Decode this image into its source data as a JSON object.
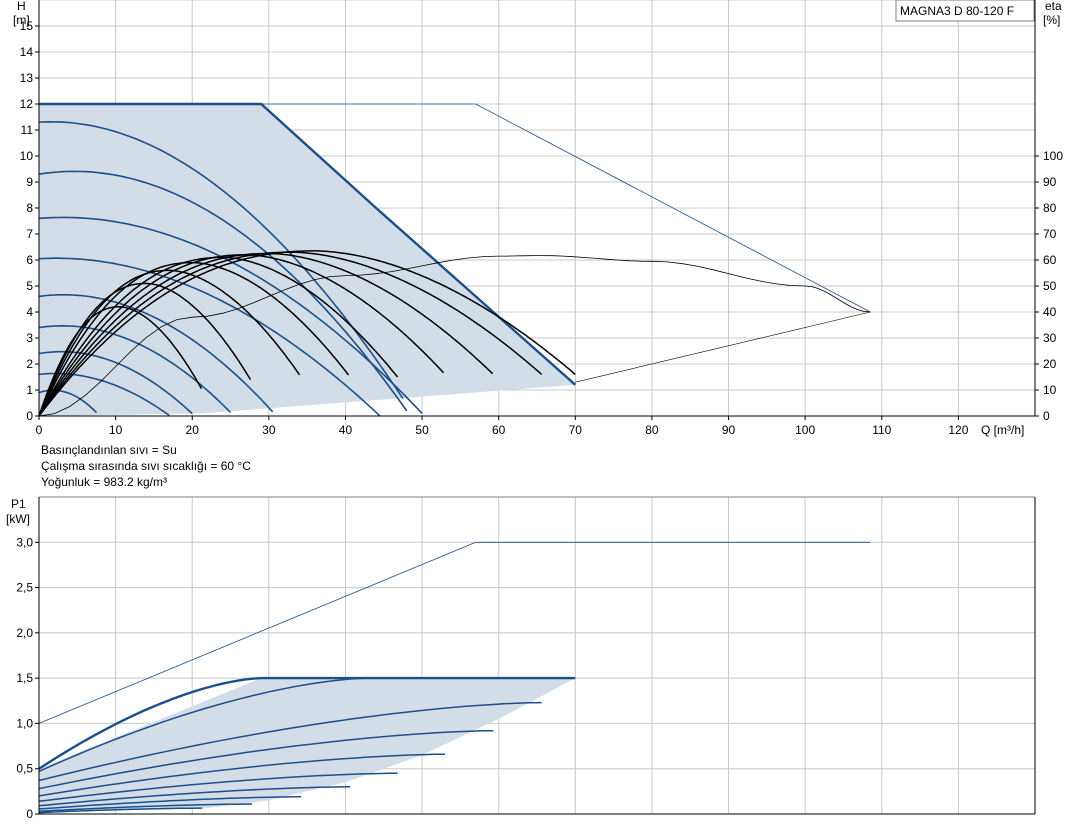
{
  "colors": {
    "envelope_fill": "#d3dde8",
    "blue": "#1a4f8a",
    "black": "#000000",
    "grid": "#c8c8c8",
    "frame": "#808080"
  },
  "conditions": [
    "Basınçlandınlan sıvı = Su",
    "Çalışma sırasında sıvı sıcaklığı = 60 °C",
    "Yoğunluk = 983.2 kg/m³"
  ],
  "chart_data": [
    {
      "type": "line",
      "title": "MAGNA3 D 80-120 F",
      "xlabel": "Q [m³/h]",
      "ylabel_line1": "H",
      "ylabel_line2": "[m]",
      "y2label_line1": "eta",
      "y2label_line2": "[%]",
      "xlim": [
        0,
        130
      ],
      "ylim": [
        0,
        16
      ],
      "y2lim": [
        0,
        160
      ],
      "x_ticks": [
        0,
        10,
        20,
        30,
        40,
        50,
        60,
        70,
        80,
        90,
        100,
        110,
        120
      ],
      "y_ticks": [
        0,
        1,
        2,
        3,
        4,
        5,
        6,
        7,
        8,
        9,
        10,
        11,
        12,
        13,
        14,
        15
      ],
      "y2_ticks": [
        0,
        10,
        20,
        30,
        40,
        50,
        60,
        70,
        80,
        90,
        100
      ],
      "grid": true,
      "envelope_boundary": [
        [
          0,
          12
        ],
        [
          29,
          12
        ],
        [
          44,
          8
        ],
        [
          70,
          1.2
        ],
        [
          21.3,
          0.1
        ],
        [
          0,
          0
        ]
      ],
      "max_head_line": [
        [
          29,
          12
        ],
        [
          57,
          12
        ],
        [
          108.5,
          4
        ]
      ],
      "speed_curves_head": [
        {
          "shutoff": 11.3,
          "qpeak": 11.3,
          "hpeak": 11.4
        },
        {
          "shutoff": 9.3,
          "qpeak": 8.5,
          "hpeak": 9.5
        },
        {
          "shutoff": 7.6,
          "qpeak": 8.5,
          "hpeak": 7.7
        },
        {
          "shutoff": 6.05,
          "qpeak": 6,
          "hpeak": 6.1
        },
        {
          "shutoff": 4.6,
          "qpeak": 5,
          "hpeak": 4.7
        },
        {
          "shutoff": 3.4,
          "qpeak": 4.5,
          "hpeak": 3.5
        },
        {
          "shutoff": 2.4,
          "qpeak": 4,
          "hpeak": 2.5
        },
        {
          "shutoff": 1.6,
          "qpeak": 3,
          "hpeak": 1.65
        },
        {
          "shutoff": 0.9,
          "qpeak": 2,
          "hpeak": 1.0
        }
      ],
      "efficiency_curves": [
        {
          "qend": 21.3,
          "qpeak": 10.5,
          "etapeak": 42,
          "etaend": 10
        },
        {
          "qend": 27.8,
          "qpeak": 14,
          "etapeak": 51,
          "etaend": 13
        },
        {
          "qend": 34.2,
          "qpeak": 17,
          "etapeak": 56,
          "etaend": 15
        },
        {
          "qend": 40.6,
          "qpeak": 20,
          "etapeak": 59,
          "etaend": 15
        },
        {
          "qend": 46.8,
          "qpeak": 24,
          "etapeak": 61,
          "etaend": 15
        },
        {
          "qend": 53,
          "qpeak": 27,
          "etapeak": 62,
          "etaend": 16
        },
        {
          "qend": 59.3,
          "qpeak": 30,
          "etapeak": 62.5,
          "etaend": 16
        },
        {
          "qend": 65.6,
          "qpeak": 33,
          "etapeak": 63,
          "etaend": 16
        },
        {
          "qend": 70,
          "qpeak": 36,
          "etapeak": 63.5,
          "etaend": 16
        }
      ],
      "efficiency_max_speed": {
        "points": [
          [
            0,
            0
          ],
          [
            20,
            38
          ],
          [
            40,
            54
          ],
          [
            60,
            61.5
          ],
          [
            65.6,
            61.7
          ],
          [
            80,
            59.5
          ],
          [
            100,
            50
          ],
          [
            108.5,
            40
          ]
        ]
      },
      "max_speed_limit_eta": [
        [
          70,
          13
        ],
        [
          108.5,
          40
        ]
      ]
    },
    {
      "type": "line",
      "ylabel_line1": "P1",
      "ylabel_line2": "[kW]",
      "xlim": [
        0,
        130
      ],
      "ylim": [
        0,
        3.5
      ],
      "y_ticks": [
        "0",
        "0,5",
        "1,0",
        "1,5",
        "2,0",
        "2,5",
        "3,0"
      ],
      "y_tick_values": [
        0,
        0.5,
        1.0,
        1.5,
        2.0,
        2.5,
        3.0
      ],
      "grid": true,
      "envelope_boundary": [
        [
          0,
          0.5
        ],
        [
          29,
          1.5
        ],
        [
          70,
          1.5
        ],
        [
          60,
          1.05
        ],
        [
          50,
          0.65
        ],
        [
          40,
          0.35
        ],
        [
          30,
          0.15
        ],
        [
          21.3,
          0.06
        ],
        [
          0,
          0.02
        ]
      ],
      "max_power_line": [
        [
          0,
          1.0
        ],
        [
          57,
          3.0
        ],
        [
          108.5,
          3.0
        ]
      ],
      "speed_curves_power": [
        {
          "p0": 0.5,
          "qend": 29,
          "pend": 1.5,
          "qbreak": 29
        },
        {
          "p0": 0.47,
          "qend": 43,
          "pend": 1.5
        },
        {
          "p0": 0.37,
          "qend": 65.6,
          "pend": 1.23
        },
        {
          "p0": 0.28,
          "qend": 59.3,
          "pend": 0.92
        },
        {
          "p0": 0.2,
          "qend": 53,
          "pend": 0.66
        },
        {
          "p0": 0.14,
          "qend": 46.8,
          "pend": 0.45
        },
        {
          "p0": 0.09,
          "qend": 40.6,
          "pend": 0.3
        },
        {
          "p0": 0.055,
          "qend": 34.2,
          "pend": 0.19
        },
        {
          "p0": 0.03,
          "qend": 27.8,
          "pend": 0.11
        },
        {
          "p0": 0.015,
          "qend": 21.3,
          "pend": 0.065
        }
      ]
    }
  ]
}
